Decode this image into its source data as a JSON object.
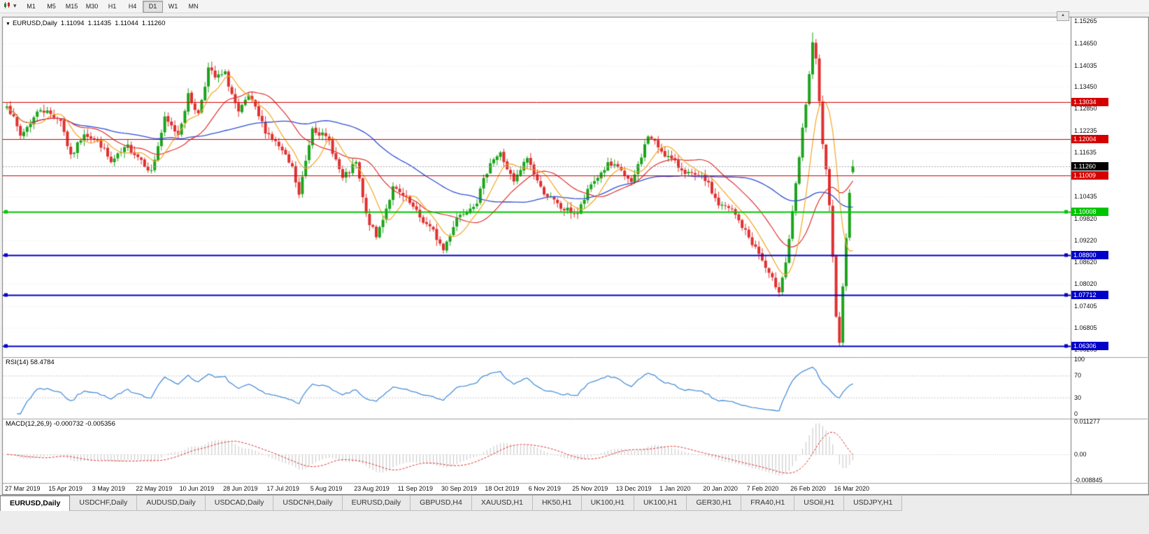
{
  "icons": {
    "dropdown_caret": "▾",
    "collapse": "▼",
    "scroll_up": "▲"
  },
  "toolbar": {
    "timeframes": [
      {
        "label": "M1",
        "active": false
      },
      {
        "label": "M5",
        "active": false
      },
      {
        "label": "M15",
        "active": false
      },
      {
        "label": "M30",
        "active": false
      },
      {
        "label": "H1",
        "active": false
      },
      {
        "label": "H4",
        "active": false
      },
      {
        "label": "D1",
        "active": true
      },
      {
        "label": "W1",
        "active": false
      },
      {
        "label": "MN",
        "active": false
      }
    ]
  },
  "chart": {
    "title_symbol": "EURUSD,Daily",
    "ohlc": {
      "open": "1.11094",
      "high": "1.11435",
      "low": "1.11044",
      "close": "1.11260"
    },
    "price_axis": {
      "top_price": 1.15381,
      "bottom_price": 1.06033,
      "ticks": [
        "1.15265",
        "1.14650",
        "1.14035",
        "1.13450",
        "1.12850",
        "1.12235",
        "1.11635",
        "1.10435",
        "1.09820",
        "1.09220",
        "1.08620",
        "1.08020",
        "1.07405",
        "1.06805",
        "1.06205"
      ]
    },
    "current_price": {
      "value": 1.1126,
      "label": "1.11260",
      "badge_bg": "#000000"
    },
    "hlines": [
      {
        "price": 1.13034,
        "label": "1.13034",
        "color": "#d40000",
        "width": 1
      },
      {
        "price": 1.12004,
        "label": "1.12004",
        "color": "#d40000",
        "width": 1
      },
      {
        "price": 1.11009,
        "label": "1.11009",
        "color": "#d40000",
        "width": 1
      },
      {
        "price": 1.10008,
        "label": "1.10008",
        "color": "#00c400",
        "width": 2
      },
      {
        "price": 1.088,
        "label": "1.08800",
        "color": "#0000c8",
        "width": 2
      },
      {
        "price": 1.07712,
        "label": "1.07712",
        "color": "#0000c8",
        "width": 2
      },
      {
        "price": 1.06306,
        "label": "1.06306",
        "color": "#0000c8",
        "width": 2
      }
    ],
    "colors": {
      "up": "#1ca41c",
      "down": "#e03030",
      "ma_fast": "#f5a623",
      "ma_mid": "#e03030",
      "ma_slow": "#2e4fd4",
      "rsi": "#4a90d9",
      "macd_hist": "#c4c4c4",
      "macd_signal": "#e03030",
      "grid": "#e3e3e3"
    }
  },
  "chart_data": {
    "type": "candlestick",
    "symbol": "EURUSD",
    "timeframe": "Daily",
    "candle_count": 253,
    "price_range_visible": [
      1.06033,
      1.15381
    ],
    "close_waypoints": [
      [
        0,
        1.13
      ],
      [
        4,
        1.121
      ],
      [
        10,
        1.1285
      ],
      [
        16,
        1.1255
      ],
      [
        19,
        1.115
      ],
      [
        23,
        1.122
      ],
      [
        28,
        1.1185
      ],
      [
        31,
        1.1135
      ],
      [
        36,
        1.118
      ],
      [
        40,
        1.1145
      ],
      [
        43,
        1.111
      ],
      [
        47,
        1.1255
      ],
      [
        51,
        1.1215
      ],
      [
        54,
        1.132
      ],
      [
        57,
        1.127
      ],
      [
        60,
        1.1395
      ],
      [
        62,
        1.137
      ],
      [
        65,
        1.138
      ],
      [
        69,
        1.127
      ],
      [
        72,
        1.132
      ],
      [
        77,
        1.1225
      ],
      [
        81,
        1.118
      ],
      [
        85,
        1.112
      ],
      [
        87,
        1.1045
      ],
      [
        91,
        1.1235
      ],
      [
        96,
        1.1195
      ],
      [
        100,
        1.109
      ],
      [
        104,
        1.1135
      ],
      [
        107,
        1.099
      ],
      [
        110,
        1.093
      ],
      [
        115,
        1.1065
      ],
      [
        119,
        1.1035
      ],
      [
        123,
        1.0985
      ],
      [
        127,
        1.0945
      ],
      [
        130,
        1.0895
      ],
      [
        134,
        1.0985
      ],
      [
        140,
        1.103
      ],
      [
        144,
        1.114
      ],
      [
        147,
        1.116
      ],
      [
        151,
        1.108
      ],
      [
        155,
        1.115
      ],
      [
        159,
        1.1065
      ],
      [
        165,
        1.101
      ],
      [
        170,
        1.0995
      ],
      [
        174,
        1.1075
      ],
      [
        179,
        1.113
      ],
      [
        183,
        1.1115
      ],
      [
        186,
        1.1075
      ],
      [
        191,
        1.121
      ],
      [
        196,
        1.116
      ],
      [
        200,
        1.1125
      ],
      [
        204,
        1.11
      ],
      [
        208,
        1.109
      ],
      [
        212,
        1.102
      ],
      [
        216,
        1.1005
      ],
      [
        220,
        1.0945
      ],
      [
        224,
        1.0885
      ],
      [
        227,
        1.0825
      ],
      [
        230,
        1.0785
      ],
      [
        232,
        1.086
      ],
      [
        234,
        1.0995
      ],
      [
        236,
        1.115
      ],
      [
        238,
        1.13
      ],
      [
        239,
        1.138
      ],
      [
        240,
        1.146
      ],
      [
        241,
        1.142
      ],
      [
        242,
        1.13
      ],
      [
        243,
        1.119
      ],
      [
        244,
        1.111
      ],
      [
        245,
        1.101
      ],
      [
        246,
        1.087
      ],
      [
        247,
        1.072
      ],
      [
        248,
        1.0645
      ],
      [
        249,
        1.079
      ],
      [
        250,
        1.0935
      ],
      [
        251,
        1.106
      ],
      [
        252,
        1.1126
      ]
    ],
    "extremes": {
      "highs": [
        [
          240,
          1.1495
        ],
        [
          60,
          1.1412
        ]
      ],
      "lows": [
        [
          248,
          1.0636
        ],
        [
          130,
          1.0899
        ],
        [
          230,
          1.0778
        ],
        [
          43,
          1.1106
        ]
      ]
    },
    "horizontal_levels": [
      1.13034,
      1.12004,
      1.11009,
      1.10008,
      1.088,
      1.07712,
      1.06306
    ],
    "last_candle_ohlc": [
      1.11094,
      1.11435,
      1.11044,
      1.1126
    ],
    "moving_averages": [
      {
        "period": 8,
        "color": "orange"
      },
      {
        "period": 20,
        "color": "red"
      },
      {
        "period": 50,
        "color": "blue"
      }
    ],
    "indicators": [
      {
        "name": "RSI",
        "params": "14",
        "current_value": "58.4784",
        "levels": [
          100,
          70,
          30,
          0
        ]
      },
      {
        "name": "MACD",
        "params": "12,26,9",
        "current_values": "-0.000732 -0.005356",
        "scale": [
          "0.011277",
          "0.00",
          "-0.008845"
        ]
      }
    ],
    "date_labels": [
      "27 Mar 2019",
      "15 Apr 2019",
      "3 May 2019",
      "22 May 2019",
      "10 Jun 2019",
      "28 Jun 2019",
      "17 Jul 2019",
      "5 Aug 2019",
      "23 Aug 2019",
      "11 Sep 2019",
      "30 Sep 2019",
      "18 Oct 2019",
      "6 Nov 2019",
      "25 Nov 2019",
      "13 Dec 2019",
      "1 Jan 2020",
      "20 Jan 2020",
      "7 Feb 2020",
      "26 Feb 2020",
      "16 Mar 2020"
    ]
  },
  "rsi": {
    "header": "RSI(14) 58.4784",
    "axis": [
      "100",
      "70",
      "30",
      "0"
    ]
  },
  "macd": {
    "header": "MACD(12,26,9) -0.000732 -0.005356",
    "axis": [
      "0.011277",
      "0.00",
      "-0.008845"
    ]
  },
  "tabs": [
    {
      "label": "EURUSD,Daily",
      "active": true
    },
    {
      "label": "USDCHF,Daily",
      "active": false
    },
    {
      "label": "AUDUSD,Daily",
      "active": false
    },
    {
      "label": "USDCAD,Daily",
      "active": false
    },
    {
      "label": "USDCNH,Daily",
      "active": false
    },
    {
      "label": "EURUSD,Daily",
      "active": false
    },
    {
      "label": "GBPUSD,H4",
      "active": false
    },
    {
      "label": "XAUUSD,H1",
      "active": false
    },
    {
      "label": "HK50,H1",
      "active": false
    },
    {
      "label": "UK100,H1",
      "active": false
    },
    {
      "label": "UK100,H1",
      "active": false
    },
    {
      "label": "GER30,H1",
      "active": false
    },
    {
      "label": "FRA40,H1",
      "active": false
    },
    {
      "label": "USOil,H1",
      "active": false
    },
    {
      "label": "USDJPY,H1",
      "active": false
    }
  ]
}
